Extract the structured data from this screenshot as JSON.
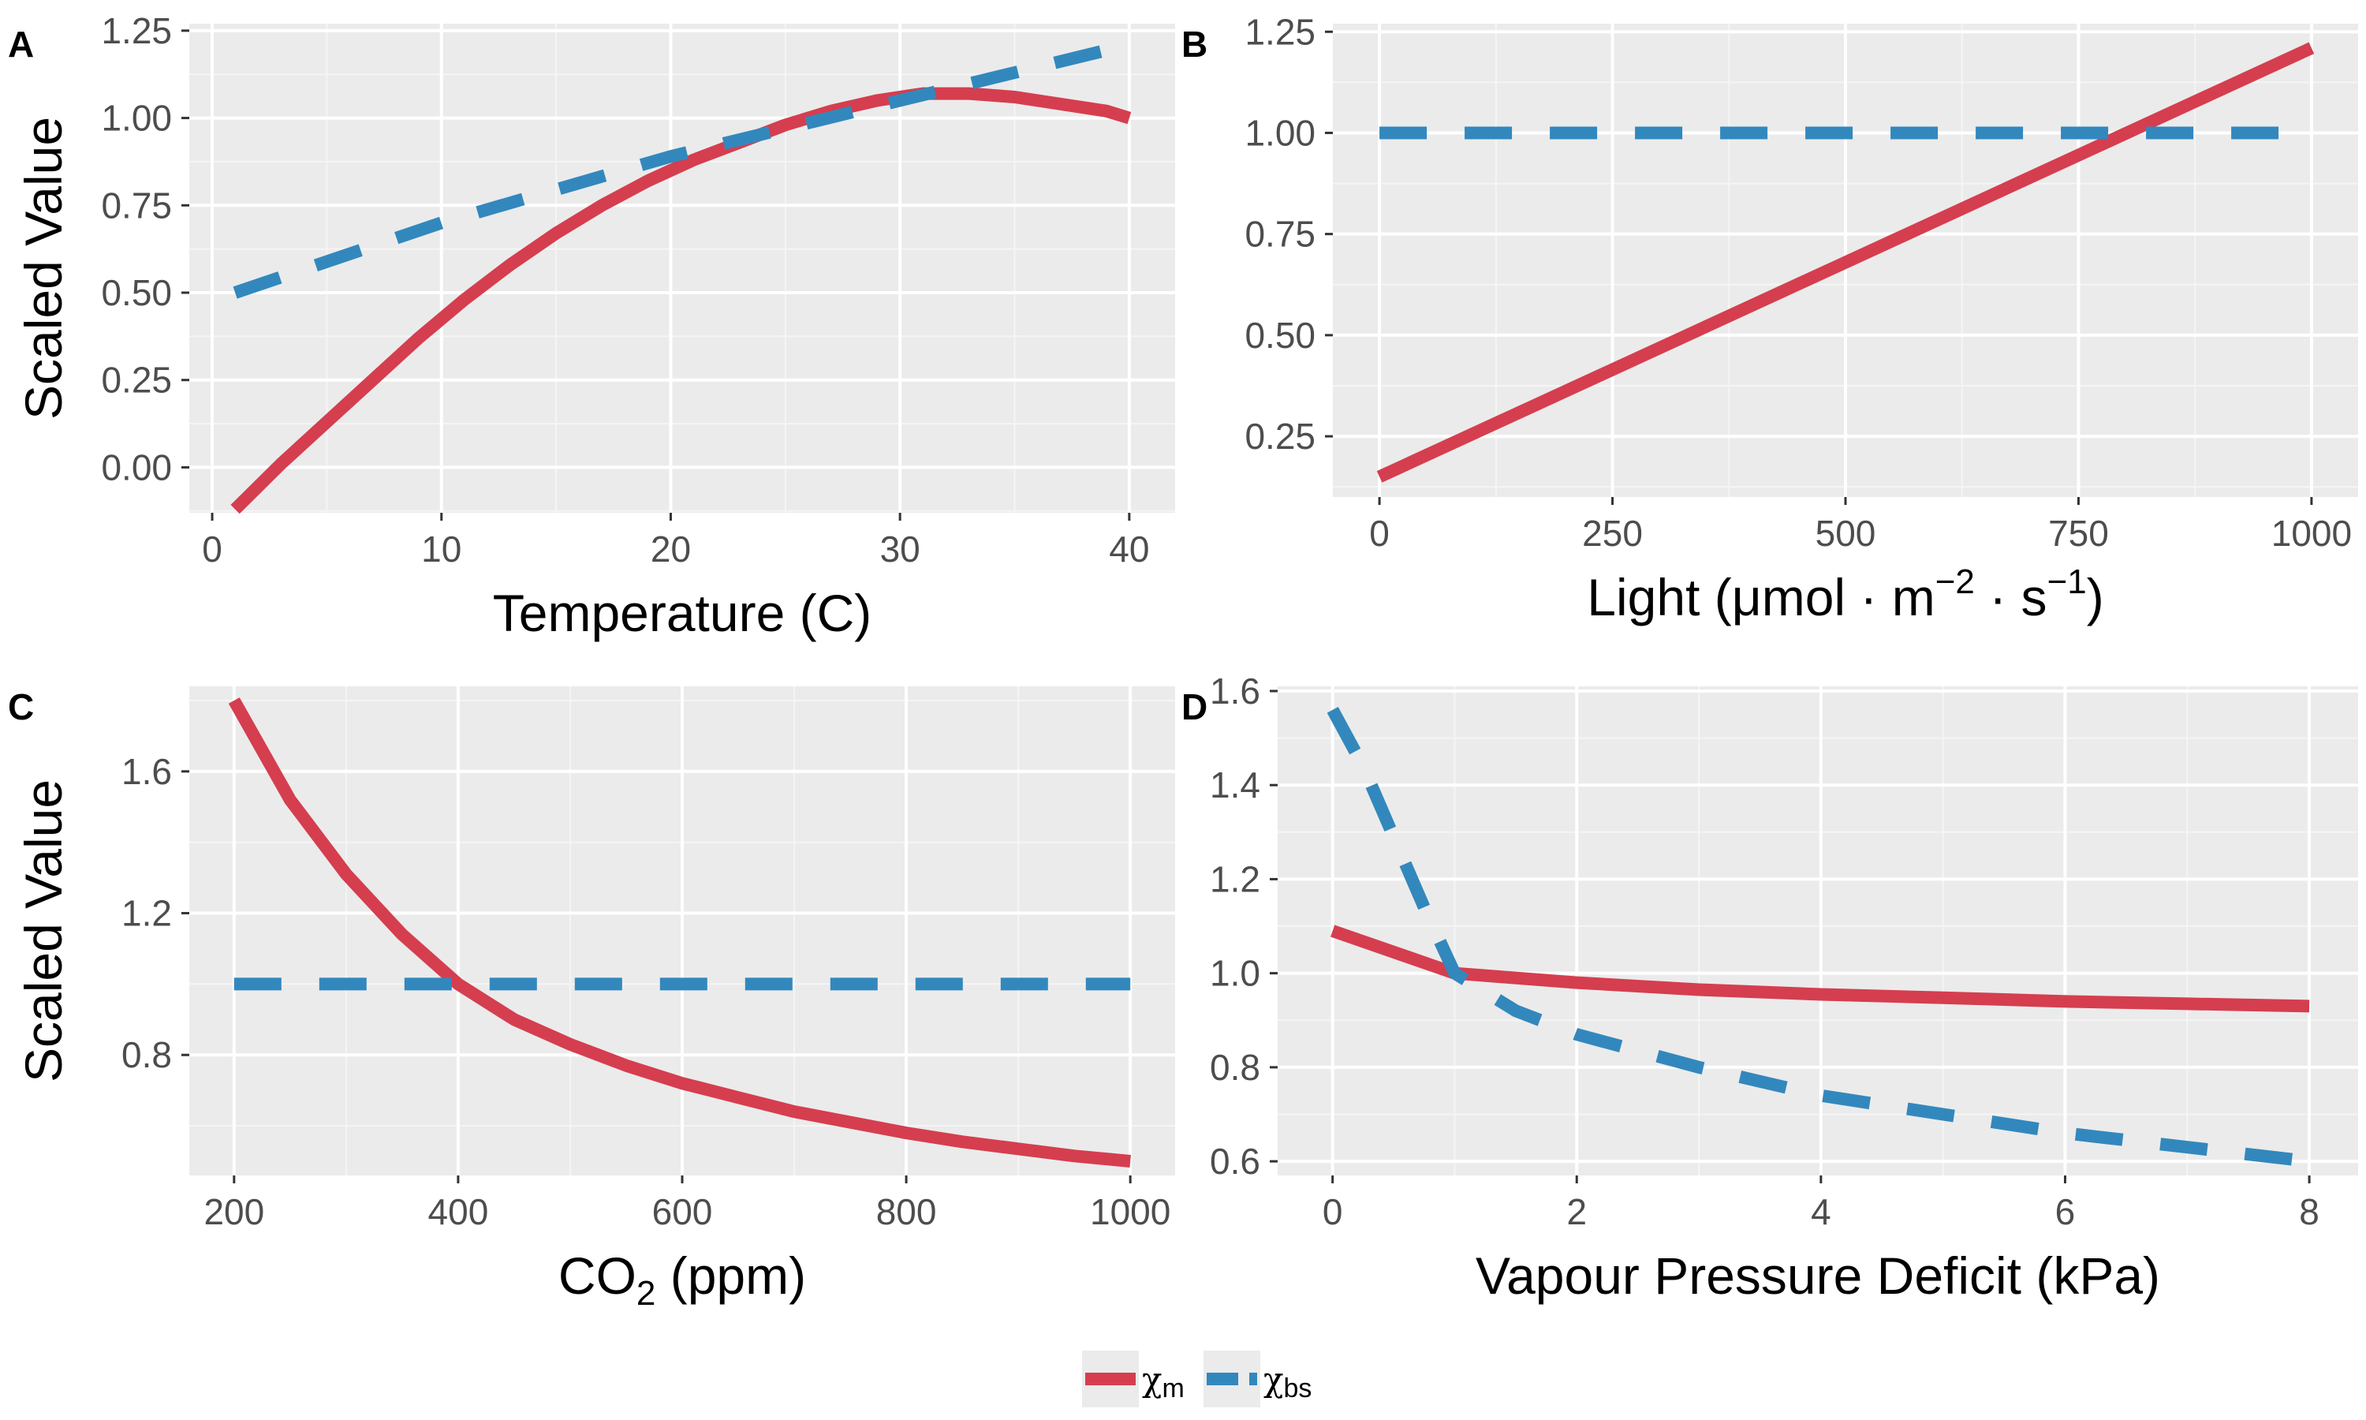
{
  "colors": {
    "panel_background": "#ebebeb",
    "grid_major": "#ffffff",
    "grid_minor": "#f5f5f5",
    "tick_text": "#4d4d4d",
    "chi_m": "#d53e4f",
    "chi_bs": "#3288bd"
  },
  "y_axis_title": "Scaled Value",
  "legend": {
    "position": "bottom",
    "items": [
      {
        "symbol": "χ",
        "subscript": "m",
        "line": "solid",
        "color": "#d53e4f"
      },
      {
        "symbol": "χ",
        "subscript": "bs",
        "line": "dashed",
        "color": "#3288bd"
      }
    ]
  },
  "chart_data": [
    {
      "tag": "A",
      "type": "line",
      "xlabel": {
        "text": "Temperature (C)",
        "sub": "",
        "rest": "",
        "sup1": "",
        "sup2": ""
      },
      "ylabel": "Scaled Value",
      "xlim": [
        -1,
        42
      ],
      "ylim": [
        -0.13,
        1.27
      ],
      "xticks": [
        0,
        10,
        20,
        30,
        40
      ],
      "xtick_labels": [
        "0",
        "10",
        "20",
        "30",
        "40"
      ],
      "yticks": [
        0,
        0.25,
        0.5,
        0.75,
        1.0,
        1.25
      ],
      "ytick_labels": [
        "0.00",
        "0.25",
        "0.50",
        "0.75",
        "1.00",
        "1.25"
      ],
      "grid": true,
      "series": [
        {
          "name": "χm",
          "style": "solid",
          "x": [
            1,
            3,
            5,
            7,
            9,
            11,
            13,
            15,
            17,
            19,
            21,
            23,
            25,
            27,
            29,
            31,
            33,
            35,
            37,
            39,
            40
          ],
          "y": [
            -0.12,
            0.01,
            0.13,
            0.25,
            0.37,
            0.48,
            0.58,
            0.67,
            0.75,
            0.82,
            0.88,
            0.93,
            0.98,
            1.02,
            1.05,
            1.07,
            1.07,
            1.06,
            1.04,
            1.02,
            1.0
          ]
        },
        {
          "name": "χbs",
          "style": "dashed",
          "x": [
            1,
            10,
            20,
            30,
            40
          ],
          "y": [
            0.5,
            0.7,
            0.89,
            1.05,
            1.21
          ]
        }
      ]
    },
    {
      "tag": "B",
      "type": "line",
      "xlabel": {
        "text": "Light (",
        "sub": "",
        "rest": "μmol · m",
        "sup1": "−2",
        "mid": " · s",
        "sup2": "−1",
        "end": ")"
      },
      "ylabel": "",
      "xlim": [
        -50,
        1050
      ],
      "ylim": [
        0.1,
        1.27
      ],
      "xticks": [
        0,
        250,
        500,
        750,
        1000
      ],
      "xtick_labels": [
        "0",
        "250",
        "500",
        "750",
        "1000"
      ],
      "yticks": [
        0.25,
        0.5,
        0.75,
        1.0,
        1.25
      ],
      "ytick_labels": [
        "0.25",
        "0.50",
        "0.75",
        "1.00",
        "1.25"
      ],
      "grid": true,
      "series": [
        {
          "name": "χm",
          "style": "solid",
          "x": [
            0,
            1000
          ],
          "y": [
            0.15,
            1.21
          ]
        },
        {
          "name": "χbs",
          "style": "dashed",
          "x": [
            0,
            1000
          ],
          "y": [
            1.0,
            1.0
          ]
        }
      ]
    },
    {
      "tag": "C",
      "type": "line",
      "xlabel": {
        "text": "CO",
        "sub": "2",
        "rest": " (ppm)",
        "sup1": "",
        "sup2": ""
      },
      "ylabel": "Scaled Value",
      "xlim": [
        160,
        1040
      ],
      "ylim": [
        0.46,
        1.84
      ],
      "xticks": [
        200,
        400,
        600,
        800,
        1000
      ],
      "xtick_labels": [
        "200",
        "400",
        "600",
        "800",
        "1000"
      ],
      "yticks": [
        0.8,
        1.2,
        1.6
      ],
      "ytick_labels": [
        "0.8",
        "1.2",
        "1.6"
      ],
      "grid": true,
      "series": [
        {
          "name": "χm",
          "style": "solid",
          "x": [
            200,
            250,
            300,
            350,
            400,
            450,
            500,
            550,
            600,
            650,
            700,
            750,
            800,
            850,
            900,
            950,
            1000
          ],
          "y": [
            1.8,
            1.52,
            1.31,
            1.14,
            1.0,
            0.9,
            0.83,
            0.77,
            0.72,
            0.68,
            0.64,
            0.61,
            0.58,
            0.555,
            0.535,
            0.515,
            0.5
          ]
        },
        {
          "name": "χbs",
          "style": "dashed",
          "x": [
            200,
            1000
          ],
          "y": [
            1.0,
            1.0
          ]
        }
      ]
    },
    {
      "tag": "D",
      "type": "line",
      "xlabel": {
        "text": "Vapour Pressure Deficit (kPa)",
        "sub": "",
        "rest": "",
        "sup1": "",
        "sup2": ""
      },
      "ylabel": "",
      "xlim": [
        -0.45,
        8.4
      ],
      "ylim": [
        0.57,
        1.61
      ],
      "xticks": [
        0,
        2,
        4,
        6,
        8
      ],
      "xtick_labels": [
        "0",
        "2",
        "4",
        "6",
        "8"
      ],
      "yticks": [
        0.6,
        0.8,
        1.0,
        1.2,
        1.4,
        1.6
      ],
      "ytick_labels": [
        "0.6",
        "0.8",
        "1.0",
        "1.2",
        "1.4",
        "1.6"
      ],
      "grid": true,
      "series": [
        {
          "name": "χm",
          "style": "solid",
          "x": [
            0,
            1,
            2,
            3,
            4,
            5,
            6,
            7,
            8
          ],
          "y": [
            1.09,
            1.0,
            0.98,
            0.965,
            0.955,
            0.948,
            0.94,
            0.935,
            0.93
          ]
        },
        {
          "name": "χbs",
          "style": "dashed",
          "x": [
            0,
            0.25,
            0.5,
            0.75,
            1,
            1.5,
            2,
            3,
            4,
            5,
            6,
            7,
            8
          ],
          "y": [
            1.56,
            1.44,
            1.29,
            1.14,
            1.0,
            0.92,
            0.87,
            0.8,
            0.74,
            0.7,
            0.66,
            0.63,
            0.6
          ]
        }
      ]
    }
  ]
}
